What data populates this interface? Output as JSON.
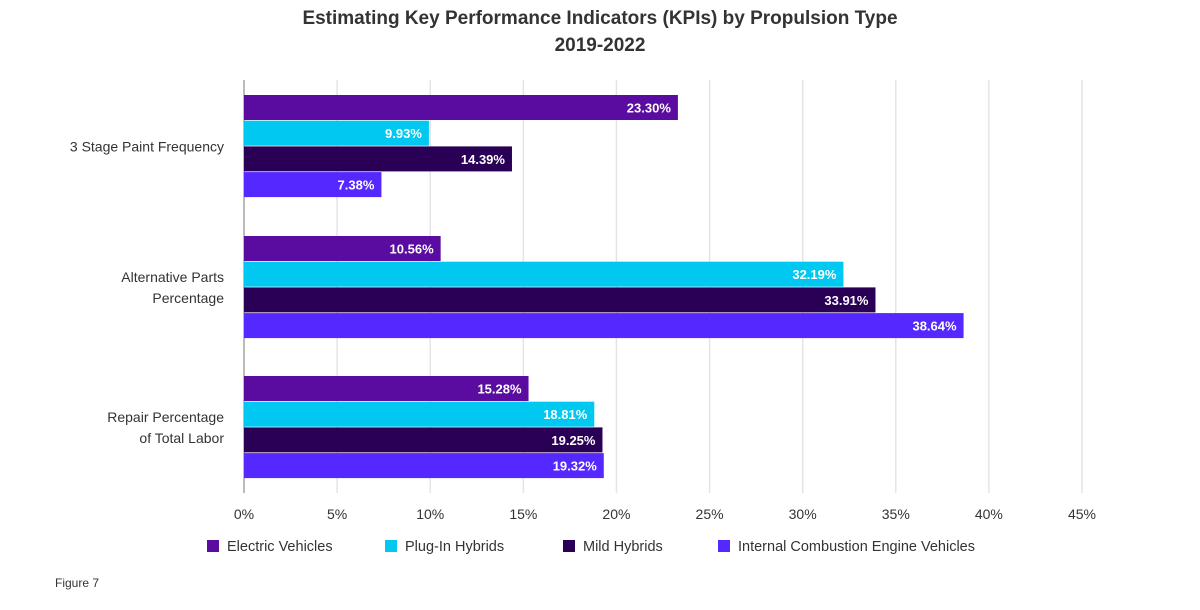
{
  "chart_data": {
    "type": "bar",
    "orientation": "horizontal",
    "title": "Estimating Key Performance Indicators (KPIs) by Propulsion Type",
    "subtitle": "2019-2022",
    "categories": [
      [
        "3 Stage Paint Frequency"
      ],
      [
        "Alternative Parts",
        "Percentage"
      ],
      [
        "Repair Percentage",
        "of Total Labor"
      ]
    ],
    "series": [
      {
        "name": "Electric Vehicles",
        "color": "#5a0ca0",
        "values": [
          23.3,
          10.56,
          15.28
        ],
        "labels": [
          "23.30%",
          "10.56%",
          "15.28%"
        ]
      },
      {
        "name": "Plug-In Hybrids",
        "color": "#00c8f0",
        "values": [
          9.93,
          32.19,
          18.81
        ],
        "labels": [
          "9.93%",
          "32.19%",
          "18.81%"
        ]
      },
      {
        "name": "Mild Hybrids",
        "color": "#2a0057",
        "values": [
          14.39,
          33.91,
          19.25
        ],
        "labels": [
          "14.39%",
          "33.91%",
          "19.25%"
        ]
      },
      {
        "name": "Internal Combustion Engine Vehicles",
        "color": "#5428ff",
        "values": [
          7.38,
          38.64,
          19.32
        ],
        "labels": [
          "7.38%",
          "38.64%",
          "19.32%"
        ]
      }
    ],
    "xlim": [
      0,
      45
    ],
    "xticks": [
      0,
      5,
      10,
      15,
      20,
      25,
      30,
      35,
      40,
      45
    ],
    "xtick_labels": [
      "0%",
      "5%",
      "10%",
      "15%",
      "20%",
      "25%",
      "30%",
      "35%",
      "40%",
      "45%"
    ],
    "grid": true,
    "legend": "bottom"
  },
  "caption": "Figure 7"
}
